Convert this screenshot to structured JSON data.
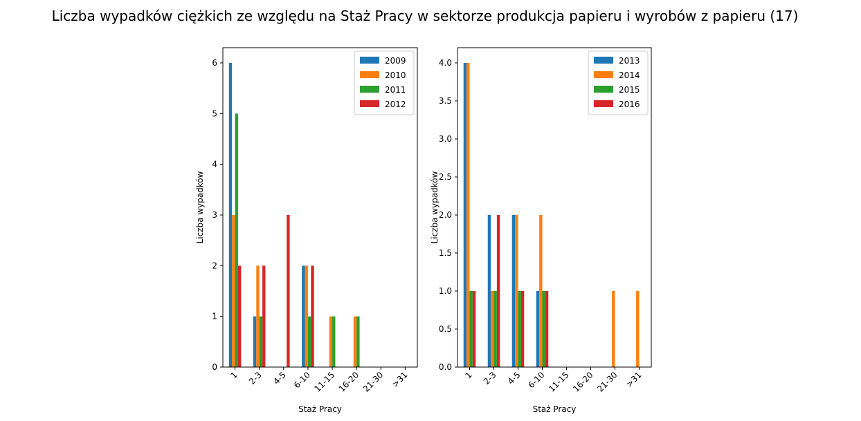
{
  "title": "Liczba wypadków ciężkich ze względu na Staż Pracy w sektorze produkcja papieru i wyrobów z papieru  (17)",
  "colors": [
    "#1f77b4",
    "#ff7f0e",
    "#2ca02c",
    "#d62728"
  ],
  "chart_data": [
    {
      "type": "bar",
      "categories": [
        "1",
        "2-3",
        "4-5",
        "6-10",
        "11-15",
        "16-20",
        "21-30",
        ">31"
      ],
      "xlabel": "Staż Pracy",
      "ylabel": "Liczba wypadków",
      "ylim": [
        0,
        6.3
      ],
      "yticks": [
        "0",
        "1",
        "2",
        "3",
        "4",
        "5",
        "6"
      ],
      "legend": "top-right",
      "series": [
        {
          "name": "2009",
          "values": [
            6,
            1,
            0,
            2,
            0,
            0,
            0,
            0
          ]
        },
        {
          "name": "2010",
          "values": [
            3,
            2,
            0,
            2,
            1,
            1,
            0,
            0
          ]
        },
        {
          "name": "2011",
          "values": [
            5,
            1,
            0,
            1,
            1,
            1,
            0,
            0
          ]
        },
        {
          "name": "2012",
          "values": [
            2,
            2,
            3,
            2,
            0,
            0,
            0,
            0
          ]
        }
      ]
    },
    {
      "type": "bar",
      "categories": [
        "1",
        "2-3",
        "4-5",
        "6-10",
        "11-15",
        "16-20",
        "21-30",
        ">31"
      ],
      "xlabel": "Staż Pracy",
      "ylabel": "Liczba wypadków",
      "ylim": [
        0,
        4.2
      ],
      "yticks": [
        "0.0",
        "0.5",
        "1.0",
        "1.5",
        "2.0",
        "2.5",
        "3.0",
        "3.5",
        "4.0"
      ],
      "legend": "top-right",
      "series": [
        {
          "name": "2013",
          "values": [
            4,
            2,
            2,
            1,
            0,
            0,
            0,
            0
          ]
        },
        {
          "name": "2014",
          "values": [
            4,
            1,
            2,
            2,
            0,
            0,
            1,
            1
          ]
        },
        {
          "name": "2015",
          "values": [
            1,
            1,
            1,
            1,
            0,
            0,
            0,
            0
          ]
        },
        {
          "name": "2016",
          "values": [
            1,
            2,
            1,
            1,
            0,
            0,
            0,
            0
          ]
        }
      ]
    }
  ]
}
